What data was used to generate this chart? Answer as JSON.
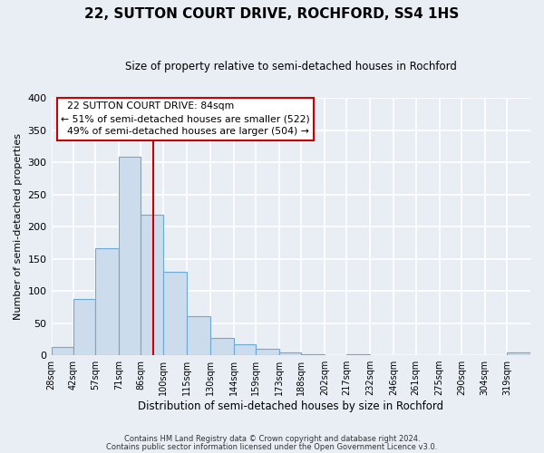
{
  "title": "22, SUTTON COURT DRIVE, ROCHFORD, SS4 1HS",
  "subtitle": "Size of property relative to semi-detached houses in Rochford",
  "xlabel": "Distribution of semi-detached houses by size in Rochford",
  "ylabel": "Number of semi-detached properties",
  "bin_labels": [
    "28sqm",
    "42sqm",
    "57sqm",
    "71sqm",
    "86sqm",
    "100sqm",
    "115sqm",
    "130sqm",
    "144sqm",
    "159sqm",
    "173sqm",
    "188sqm",
    "202sqm",
    "217sqm",
    "232sqm",
    "246sqm",
    "261sqm",
    "275sqm",
    "290sqm",
    "304sqm",
    "319sqm"
  ],
  "bar_heights": [
    13,
    87,
    167,
    308,
    218,
    130,
    60,
    27,
    17,
    10,
    5,
    2,
    0,
    2,
    0,
    0,
    0,
    0,
    0,
    0,
    5
  ],
  "bin_edges": [
    21,
    35,
    49,
    64,
    78,
    92,
    107,
    122,
    137,
    151,
    166,
    180,
    195,
    209,
    224,
    239,
    253,
    268,
    282,
    297,
    311,
    326
  ],
  "property_label": "22 SUTTON COURT DRIVE: 84sqm",
  "pct_smaller": 51,
  "count_smaller": 522,
  "pct_larger": 49,
  "count_larger": 504,
  "bar_color": "#ccdcec",
  "bar_edge_color": "#6aaad4",
  "vline_color": "#cc0000",
  "vline_x": 86,
  "ylim": [
    0,
    400
  ],
  "yticks": [
    0,
    50,
    100,
    150,
    200,
    250,
    300,
    350,
    400
  ],
  "annotation_box_color": "#ffffff",
  "annotation_box_edge": "#cc0000",
  "footer_line1": "Contains HM Land Registry data © Crown copyright and database right 2024.",
  "footer_line2": "Contains public sector information licensed under the Open Government Licence v3.0.",
  "background_color": "#e8eef4",
  "grid_color": "#ffffff"
}
